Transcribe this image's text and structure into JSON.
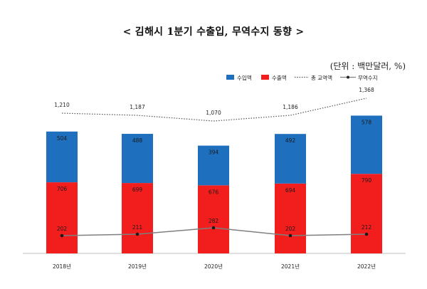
{
  "title": "< 김해시 1분기 수출입, 무역수지 동향 >",
  "unit": "(단위 : 백만달러, %)",
  "legend": {
    "import": "수입액",
    "export": "수출액",
    "total": "총 교역액",
    "balance": "무역수지"
  },
  "colors": {
    "import": "#1F6FBF",
    "export": "#F21E1E",
    "total_line": "#555555",
    "balance_line": "#7f7f7f"
  },
  "chart_data": {
    "type": "bar",
    "stacked": true,
    "categories": [
      "2018년",
      "2019년",
      "2020년",
      "2021년",
      "2022년"
    ],
    "series": [
      {
        "name": "수출액",
        "values": [
          706,
          699,
          676,
          694,
          790
        ],
        "labels": [
          "706",
          "699",
          "676",
          "694",
          "790"
        ]
      },
      {
        "name": "수입액",
        "values": [
          504,
          488,
          394,
          492,
          578
        ],
        "labels": [
          "504",
          "488",
          "394",
          "492",
          "578"
        ]
      }
    ],
    "lines": [
      {
        "name": "총 교역액",
        "style": "dotted",
        "values": [
          1210,
          1187,
          1070,
          1186,
          1368
        ],
        "labels": [
          "1,210",
          "1,187",
          "1,070",
          "1,186",
          "1,368"
        ]
      },
      {
        "name": "무역수지",
        "style": "solid-markers",
        "values": [
          202,
          211,
          282,
          202,
          212
        ],
        "labels": [
          "202",
          "211",
          "282",
          "202",
          "212"
        ]
      }
    ],
    "ylim": [
      0,
      1450
    ],
    "grid": false,
    "legend_position": "top-right"
  }
}
